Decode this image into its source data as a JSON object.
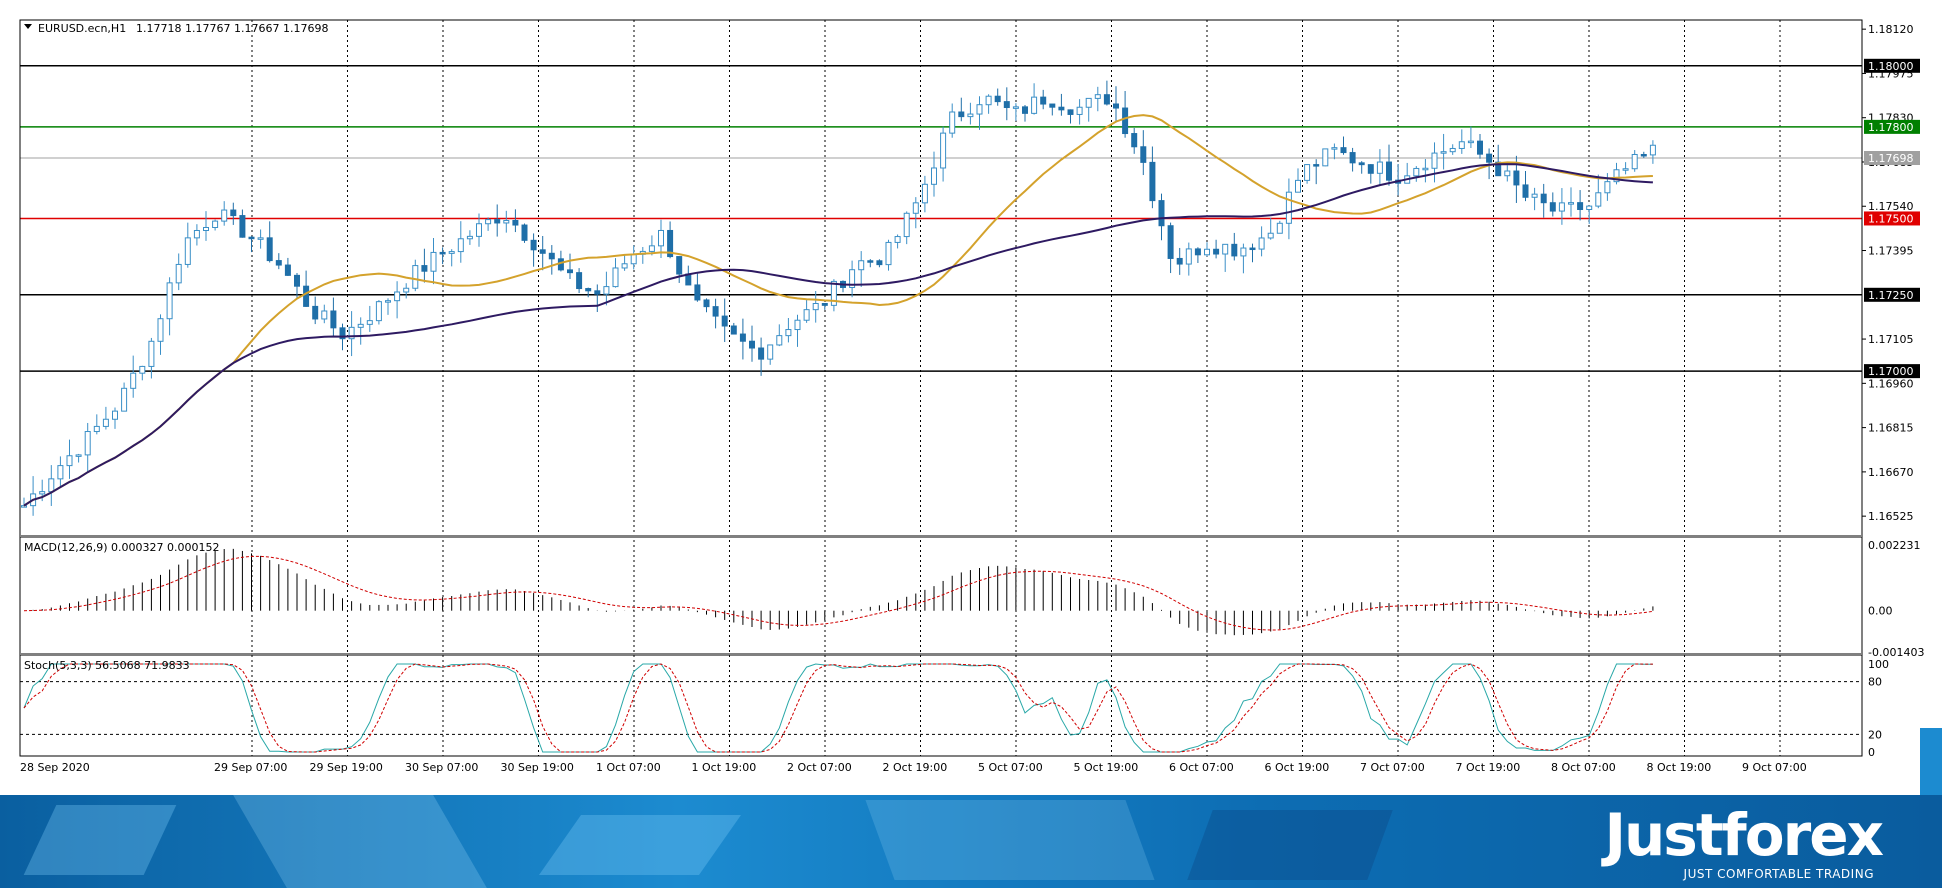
{
  "header": {
    "symbol_label": "EURUSD.ecn,H1",
    "ohlc": "1.17718 1.17767 1.17667 1.17698"
  },
  "macd": {
    "label": "MACD(12,26,9) 0.000327 0.000152",
    "ticks": [
      "0.002231",
      "0.00",
      "-0.001403"
    ]
  },
  "stoch": {
    "label": "Stoch(5,3,3) 56.5068 71.9833",
    "ticks": [
      "100",
      "80",
      "20",
      "0"
    ]
  },
  "price_ticks": [
    "1.18120",
    "1.17975",
    "1.17830",
    "1.17685",
    "1.17540",
    "1.17395",
    "1.17105",
    "1.16960",
    "1.16815",
    "1.16670",
    "1.16525"
  ],
  "time_labels": [
    "28 Sep 2020",
    "29 Sep 07:00",
    "29 Sep 19:00",
    "30 Sep 07:00",
    "30 Sep 19:00",
    "1 Oct 07:00",
    "1 Oct 19:00",
    "2 Oct 07:00",
    "2 Oct 19:00",
    "5 Oct 07:00",
    "5 Oct 19:00",
    "6 Oct 07:00",
    "6 Oct 19:00",
    "7 Oct 07:00",
    "7 Oct 19:00",
    "8 Oct 07:00",
    "8 Oct 19:00",
    "9 Oct 07:00"
  ],
  "levels": [
    {
      "label": "1.18000",
      "value": 1.18,
      "color": "#000000"
    },
    {
      "label": "1.17800",
      "value": 1.178,
      "color": "#008000"
    },
    {
      "label": "1.17698",
      "value": 1.17698,
      "color": "#a0a0a0"
    },
    {
      "label": "1.17500",
      "value": 1.175,
      "color": "#e00000"
    },
    {
      "label": "1.17250",
      "value": 1.1725,
      "color": "#000000"
    },
    {
      "label": "1.17000",
      "value": 1.17,
      "color": "#000000"
    }
  ],
  "colors": {
    "bull": "#3a8fc7",
    "bear": "#1f6fa8",
    "ma_fast": "#d4a22c",
    "ma_slow": "#2e1a62",
    "signal": "#d00000",
    "stoch_main": "#29a8a8",
    "stoch_signal": "#d00000"
  },
  "banner": {
    "brand": "Justforex",
    "tagline": "JUST COMFORTABLE TRADING"
  },
  "chart_data": {
    "type": "candlestick",
    "symbol": "EURUSD.ecn",
    "timeframe": "H1",
    "ylim": [
      1.1646,
      1.1815
    ],
    "approx_closes": [
      1.1656,
      1.1668,
      1.1678,
      1.169,
      1.171,
      1.1742,
      1.1752,
      1.1745,
      1.1735,
      1.172,
      1.1712,
      1.172,
      1.173,
      1.1738,
      1.1745,
      1.1752,
      1.1742,
      1.173,
      1.1725,
      1.1738,
      1.1745,
      1.1722,
      1.1712,
      1.1706,
      1.1716,
      1.1722,
      1.1735,
      1.1738,
      1.1756,
      1.1782,
      1.179,
      1.1784,
      1.179,
      1.1786,
      1.179,
      1.177,
      1.1735,
      1.1742,
      1.174,
      1.1745,
      1.1765,
      1.1772,
      1.1768,
      1.1764,
      1.177,
      1.1775,
      1.1768,
      1.1757,
      1.1752,
      1.1754,
      1.1765,
      1.1772
    ],
    "macd_range": [
      -0.001403,
      0.002231
    ],
    "stoch_range": [
      0,
      100
    ],
    "stoch_levels": [
      20,
      80
    ]
  }
}
